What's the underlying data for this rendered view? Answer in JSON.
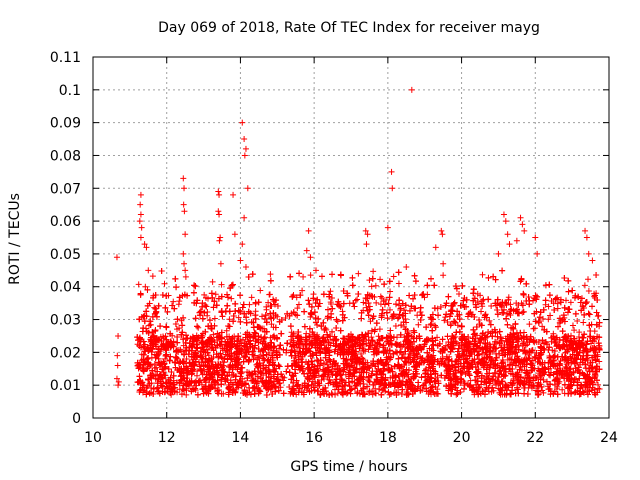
{
  "chart_data": {
    "type": "scatter",
    "title": "Day 069 of 2018, Rate Of TEC Index for receiver mayg",
    "xlabel": "GPS time / hours",
    "ylabel": "ROTI / TECUs",
    "xlim": [
      10,
      24
    ],
    "ylim": [
      0,
      0.11
    ],
    "x_ticks": [
      10,
      12,
      14,
      16,
      18,
      20,
      22,
      24
    ],
    "x_tick_labels": [
      "10",
      "12",
      "14",
      "16",
      "18",
      "20",
      "22",
      "24"
    ],
    "y_ticks": [
      0,
      0.01,
      0.02,
      0.03,
      0.04,
      0.05,
      0.06,
      0.07,
      0.08,
      0.09,
      0.1,
      0.11
    ],
    "y_tick_labels": [
      "0",
      "0.01",
      "0.02",
      "0.03",
      "0.04",
      "0.05",
      "0.06",
      "0.07",
      "0.08",
      "0.09",
      "0.1",
      "0.11"
    ],
    "grid": true,
    "marker": "+",
    "color": "#ff0000",
    "series": [
      {
        "name": "ROTI",
        "description_note": "dense cloud of points sampled every few minutes for all satellites",
        "points": [
          [
            10.65,
            0.049
          ],
          [
            10.68,
            0.025
          ],
          [
            10.66,
            0.019
          ],
          [
            10.67,
            0.016
          ],
          [
            10.65,
            0.012
          ],
          [
            10.7,
            0.011
          ],
          [
            10.68,
            0.01
          ],
          [
            11.3,
            0.068
          ],
          [
            11.28,
            0.065
          ],
          [
            11.3,
            0.062
          ],
          [
            11.27,
            0.06
          ],
          [
            11.32,
            0.058
          ],
          [
            11.3,
            0.055
          ],
          [
            11.4,
            0.053
          ],
          [
            11.45,
            0.052
          ],
          [
            11.5,
            0.045
          ],
          [
            11.42,
            0.04
          ],
          [
            12.45,
            0.073
          ],
          [
            12.47,
            0.07
          ],
          [
            12.46,
            0.065
          ],
          [
            12.48,
            0.063
          ],
          [
            12.5,
            0.056
          ],
          [
            12.45,
            0.05
          ],
          [
            12.47,
            0.047
          ],
          [
            12.5,
            0.045
          ],
          [
            12.52,
            0.043
          ],
          [
            13.4,
            0.069
          ],
          [
            13.42,
            0.068
          ],
          [
            13.4,
            0.063
          ],
          [
            13.42,
            0.062
          ],
          [
            13.45,
            0.055
          ],
          [
            13.43,
            0.054
          ],
          [
            13.47,
            0.047
          ],
          [
            13.8,
            0.068
          ],
          [
            13.85,
            0.056
          ],
          [
            14.05,
            0.09
          ],
          [
            14.1,
            0.085
          ],
          [
            14.15,
            0.082
          ],
          [
            14.12,
            0.08
          ],
          [
            14.2,
            0.07
          ],
          [
            14.1,
            0.061
          ],
          [
            14.05,
            0.053
          ],
          [
            14.0,
            0.048
          ],
          [
            14.15,
            0.046
          ],
          [
            15.85,
            0.057
          ],
          [
            15.8,
            0.051
          ],
          [
            15.9,
            0.049
          ],
          [
            16.05,
            0.045
          ],
          [
            15.7,
            0.043
          ],
          [
            17.4,
            0.057
          ],
          [
            17.45,
            0.056
          ],
          [
            17.42,
            0.053
          ],
          [
            17.2,
            0.044
          ],
          [
            17.5,
            0.042
          ],
          [
            18.1,
            0.075
          ],
          [
            18.12,
            0.07
          ],
          [
            18.0,
            0.058
          ],
          [
            18.65,
            0.1
          ],
          [
            18.5,
            0.046
          ],
          [
            18.3,
            0.041
          ],
          [
            19.45,
            0.057
          ],
          [
            19.48,
            0.056
          ],
          [
            19.3,
            0.052
          ],
          [
            19.5,
            0.047
          ],
          [
            21.15,
            0.062
          ],
          [
            21.2,
            0.06
          ],
          [
            21.25,
            0.056
          ],
          [
            21.3,
            0.053
          ],
          [
            21.6,
            0.061
          ],
          [
            21.65,
            0.059
          ],
          [
            21.7,
            0.057
          ],
          [
            21.5,
            0.054
          ],
          [
            21.0,
            0.05
          ],
          [
            22.0,
            0.055
          ],
          [
            22.05,
            0.05
          ],
          [
            23.35,
            0.057
          ],
          [
            23.4,
            0.055
          ],
          [
            23.45,
            0.05
          ],
          [
            23.55,
            0.048
          ],
          [
            23.65,
            0.038
          ],
          [
            23.6,
            0.037
          ]
        ]
      }
    ]
  }
}
